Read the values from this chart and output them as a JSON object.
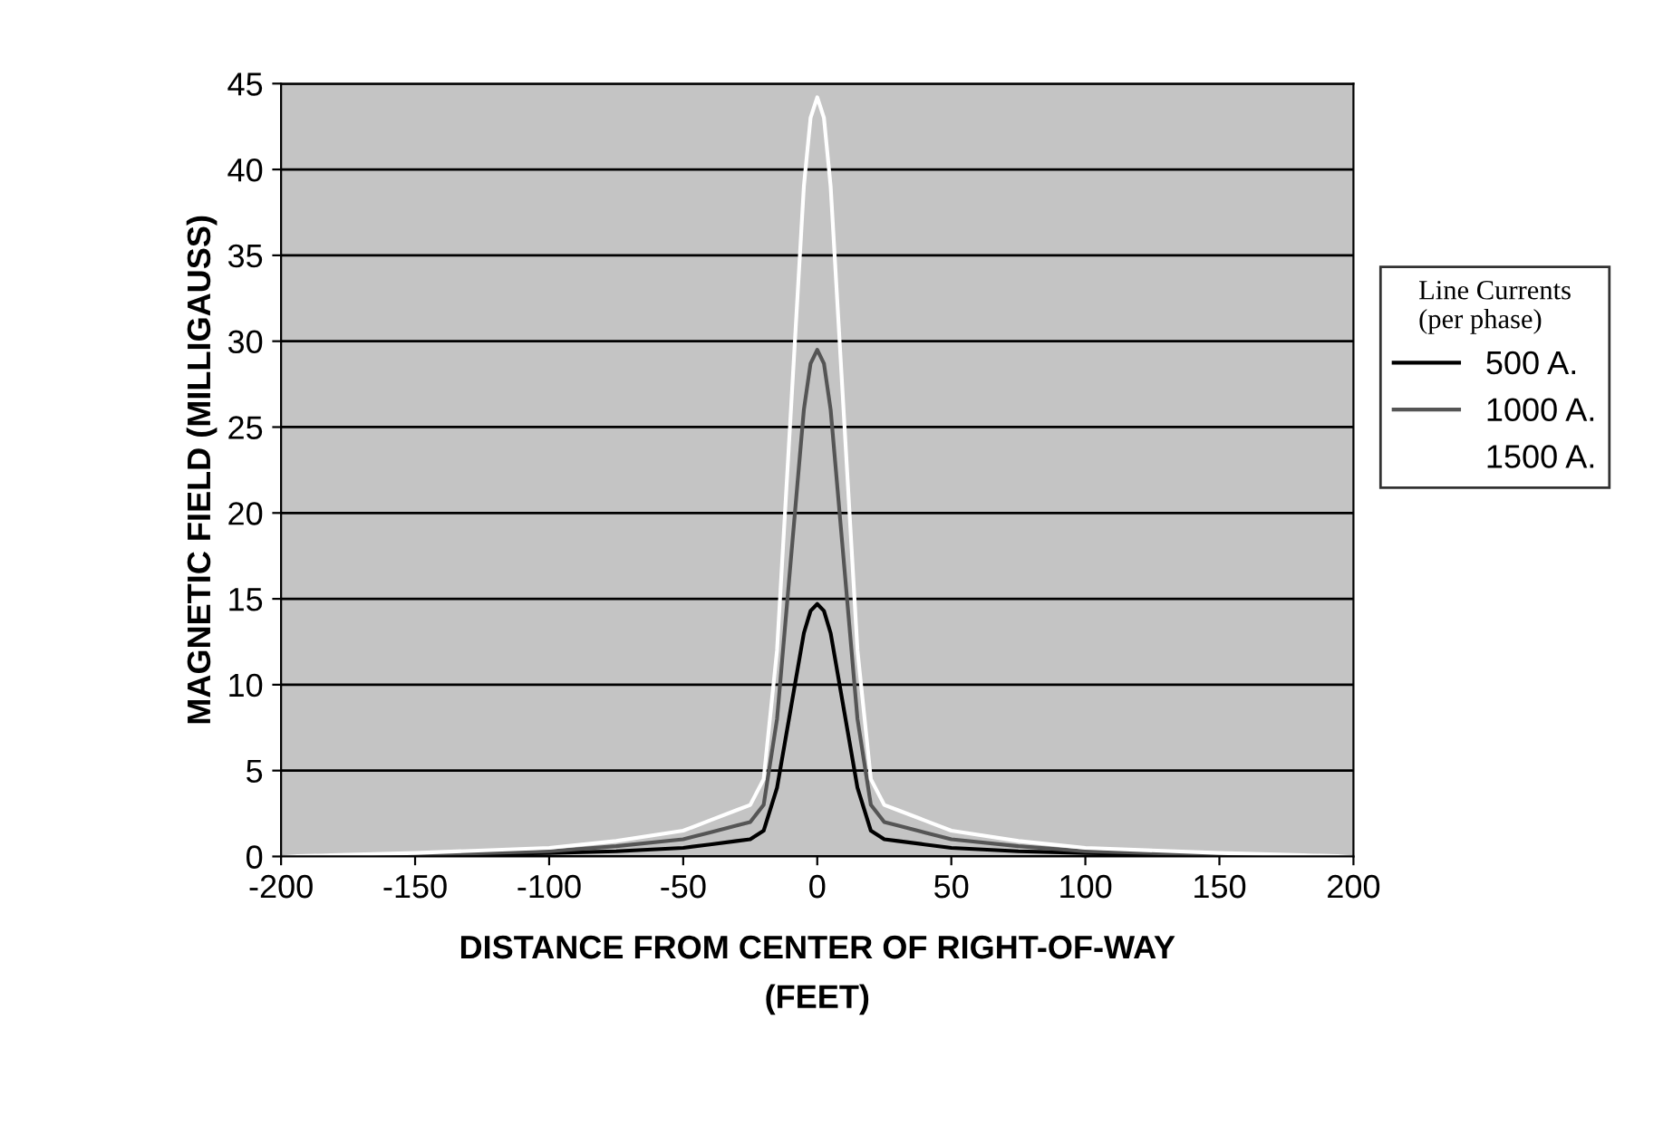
{
  "chart_data": {
    "type": "line",
    "xlabel": "DISTANCE FROM CENTER OF RIGHT-OF-WAY\n(FEET)",
    "ylabel": "MAGNETIC FIELD (MILLIGAUSS)",
    "legend_title": "Line Currents\n(per phase)",
    "x": [
      -200,
      -150,
      -100,
      -75,
      -50,
      -40,
      -30,
      -25,
      -20,
      -15,
      -10,
      -5,
      -2.5,
      0,
      2.5,
      5,
      10,
      15,
      20,
      25,
      30,
      40,
      50,
      75,
      100,
      150,
      200
    ],
    "series": [
      {
        "name": "500 A.",
        "color": "#000000",
        "values": [
          0,
          0.1,
          0.2,
          0.3,
          0.5,
          0.7,
          0.9,
          1.0,
          1.5,
          4,
          8.5,
          13,
          14.3,
          14.7,
          14.3,
          13,
          8.5,
          4,
          1.5,
          1.0,
          0.9,
          0.7,
          0.5,
          0.3,
          0.2,
          0.1,
          0
        ]
      },
      {
        "name": "1000 A.",
        "color": "#555555",
        "values": [
          0,
          0.1,
          0.3,
          0.6,
          1.0,
          1.4,
          1.8,
          2.0,
          3,
          8,
          17,
          26,
          28.7,
          29.5,
          28.7,
          26,
          17,
          8,
          3,
          2.0,
          1.8,
          1.4,
          1.0,
          0.6,
          0.3,
          0.1,
          0
        ]
      },
      {
        "name": "1500 A.",
        "color": "#ffffff",
        "values": [
          0,
          0.2,
          0.5,
          0.9,
          1.5,
          2.1,
          2.7,
          3.0,
          4.5,
          12,
          25.5,
          39,
          43,
          44.2,
          43,
          39,
          25.5,
          12,
          4.5,
          3.0,
          2.7,
          2.1,
          1.5,
          0.9,
          0.5,
          0.2,
          0
        ]
      }
    ],
    "xlim": [
      -200,
      200
    ],
    "xticks": [
      -200,
      -150,
      -100,
      -50,
      0,
      50,
      100,
      150,
      200
    ],
    "ylim": [
      0,
      45
    ],
    "yticks": [
      0,
      5,
      10,
      15,
      20,
      25,
      30,
      35,
      40,
      45
    ],
    "grid": "y",
    "legend": "right",
    "marker": "none",
    "line_style": "solid"
  }
}
